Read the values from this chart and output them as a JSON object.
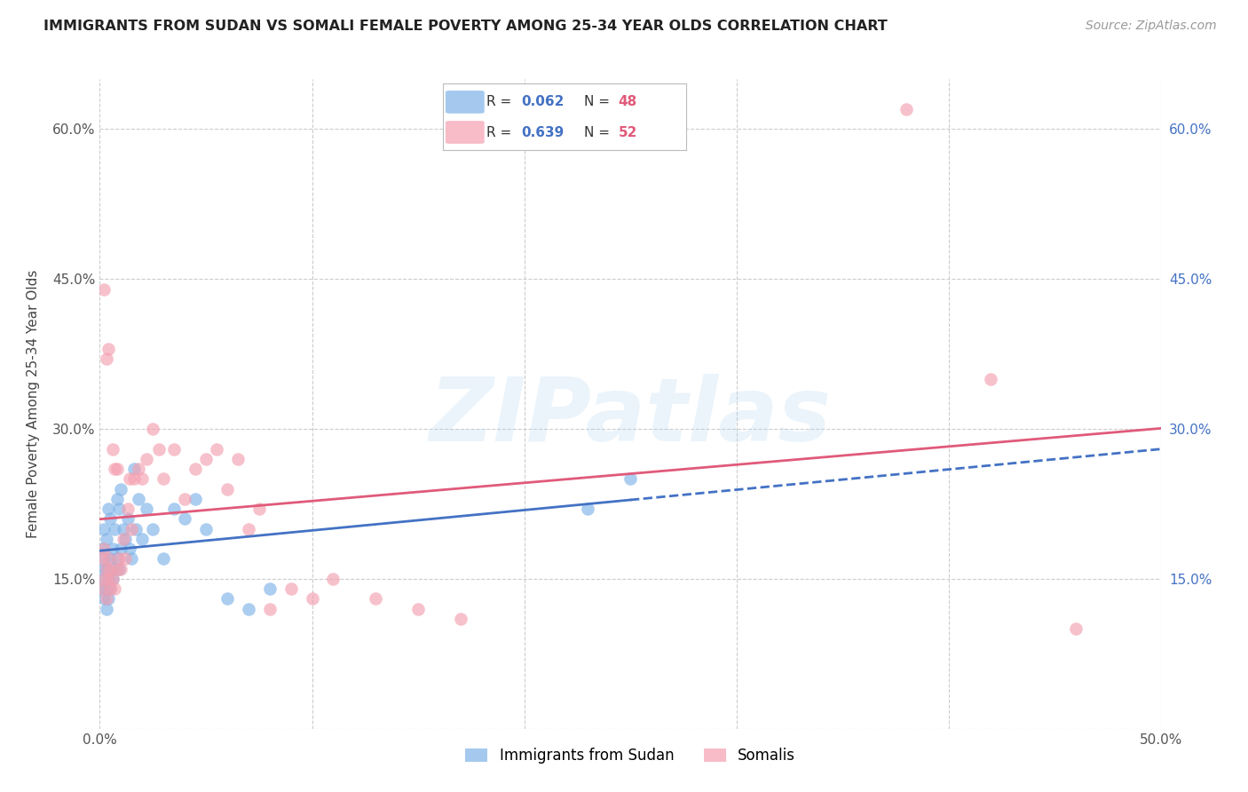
{
  "title": "IMMIGRANTS FROM SUDAN VS SOMALI FEMALE POVERTY AMONG 25-34 YEAR OLDS CORRELATION CHART",
  "source": "Source: ZipAtlas.com",
  "ylabel": "Female Poverty Among 25-34 Year Olds",
  "xlim": [
    0.0,
    0.5
  ],
  "ylim": [
    0.0,
    0.65
  ],
  "xticks": [
    0.0,
    0.1,
    0.2,
    0.3,
    0.4,
    0.5
  ],
  "yticks": [
    0.0,
    0.15,
    0.3,
    0.45,
    0.6
  ],
  "background_color": "#ffffff",
  "grid_color": "#cccccc",
  "watermark": "ZIPatlas",
  "sudan_color": "#7fb3e8",
  "somali_color": "#f4a0b0",
  "sudan_line_color": "#4472c4",
  "somali_line_color": "#e05a7a",
  "sudan_R": 0.062,
  "sudan_N": 48,
  "somali_R": 0.639,
  "somali_N": 52,
  "sudan_x": [
    0.001,
    0.001,
    0.001,
    0.002,
    0.002,
    0.002,
    0.002,
    0.003,
    0.003,
    0.003,
    0.003,
    0.004,
    0.004,
    0.004,
    0.005,
    0.005,
    0.005,
    0.006,
    0.006,
    0.007,
    0.007,
    0.008,
    0.008,
    0.009,
    0.009,
    0.01,
    0.01,
    0.011,
    0.012,
    0.013,
    0.014,
    0.015,
    0.016,
    0.017,
    0.018,
    0.02,
    0.022,
    0.025,
    0.03,
    0.035,
    0.04,
    0.045,
    0.05,
    0.06,
    0.07,
    0.08,
    0.23,
    0.25
  ],
  "sudan_y": [
    0.14,
    0.16,
    0.18,
    0.13,
    0.15,
    0.17,
    0.2,
    0.12,
    0.14,
    0.16,
    0.19,
    0.13,
    0.15,
    0.22,
    0.14,
    0.17,
    0.21,
    0.15,
    0.18,
    0.16,
    0.2,
    0.17,
    0.23,
    0.16,
    0.22,
    0.18,
    0.24,
    0.2,
    0.19,
    0.21,
    0.18,
    0.17,
    0.26,
    0.2,
    0.23,
    0.19,
    0.22,
    0.2,
    0.17,
    0.22,
    0.21,
    0.23,
    0.2,
    0.13,
    0.12,
    0.14,
    0.22,
    0.25
  ],
  "somali_x": [
    0.001,
    0.001,
    0.002,
    0.002,
    0.002,
    0.003,
    0.003,
    0.003,
    0.004,
    0.004,
    0.004,
    0.005,
    0.005,
    0.006,
    0.006,
    0.007,
    0.007,
    0.008,
    0.008,
    0.009,
    0.01,
    0.011,
    0.012,
    0.013,
    0.014,
    0.015,
    0.016,
    0.018,
    0.02,
    0.022,
    0.025,
    0.028,
    0.03,
    0.035,
    0.04,
    0.045,
    0.05,
    0.055,
    0.06,
    0.065,
    0.07,
    0.075,
    0.08,
    0.09,
    0.1,
    0.11,
    0.13,
    0.15,
    0.17,
    0.38,
    0.42,
    0.46
  ],
  "somali_y": [
    0.14,
    0.17,
    0.15,
    0.18,
    0.44,
    0.13,
    0.16,
    0.37,
    0.15,
    0.17,
    0.38,
    0.14,
    0.16,
    0.15,
    0.28,
    0.14,
    0.26,
    0.16,
    0.26,
    0.17,
    0.16,
    0.19,
    0.17,
    0.22,
    0.25,
    0.2,
    0.25,
    0.26,
    0.25,
    0.27,
    0.3,
    0.28,
    0.25,
    0.28,
    0.23,
    0.26,
    0.27,
    0.28,
    0.24,
    0.27,
    0.2,
    0.22,
    0.12,
    0.14,
    0.13,
    0.15,
    0.13,
    0.12,
    0.11,
    0.62,
    0.35,
    0.1
  ]
}
